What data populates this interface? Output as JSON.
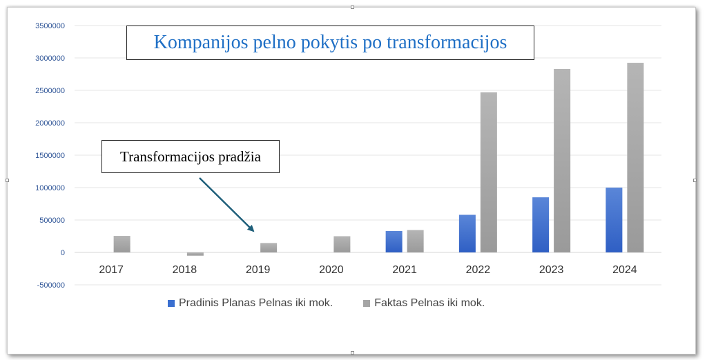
{
  "chart_data": {
    "type": "bar",
    "title": "Kompanijos pelno pokytis po transformacijos",
    "categories": [
      "2017",
      "2018",
      "2019",
      "2020",
      "2021",
      "2022",
      "2023",
      "2024"
    ],
    "series": [
      {
        "name": "Pradinis Planas Pelnas iki mok.",
        "color": "#3a6fd0",
        "values": [
          0,
          0,
          0,
          0,
          330000,
          580000,
          850000,
          1000000
        ]
      },
      {
        "name": "Faktas Pelnas iki mok.",
        "color": "#a5a5a5",
        "values": [
          255000,
          -50000,
          145000,
          250000,
          345000,
          2470000,
          2830000,
          2925000
        ]
      }
    ],
    "ylim": [
      -500000,
      3500000
    ],
    "yticks": [
      "-500000",
      "0",
      "500000",
      "1000000",
      "1500000",
      "2000000",
      "2500000",
      "3000000",
      "3500000"
    ],
    "grid": true,
    "legend_position": "bottom",
    "annotation": {
      "text": "Transformacijos pradžia",
      "points_to": "2019"
    }
  }
}
